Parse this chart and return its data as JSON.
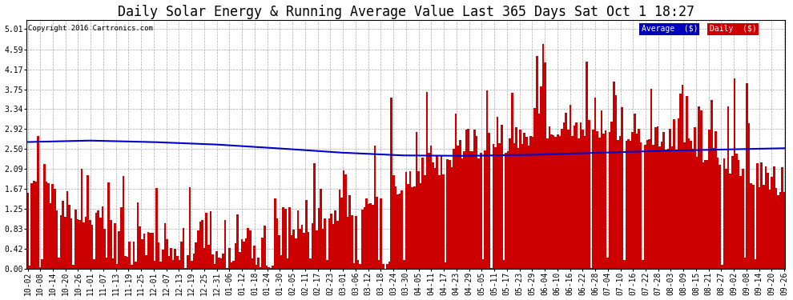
{
  "title": "Daily Solar Energy & Running Average Value Last 365 Days Sat Oct 1 18:27",
  "copyright": "Copyright 2016 Cartronics.com",
  "legend_labels": [
    "Average  ($)",
    "Daily  ($)"
  ],
  "legend_colors": [
    "#0000bb",
    "#cc0000"
  ],
  "yticks": [
    0.0,
    0.42,
    0.83,
    1.25,
    1.67,
    2.09,
    2.5,
    2.92,
    3.34,
    3.75,
    4.17,
    4.59,
    5.01
  ],
  "ymax": 5.2,
  "ymin": 0.0,
  "bar_color": "#cc0000",
  "avg_color": "#0000cc",
  "background_color": "#ffffff",
  "grid_color": "#aaaaaa",
  "title_fontsize": 12,
  "tick_fontsize": 7,
  "x_tick_labels": [
    "10-02",
    "10-08",
    "10-14",
    "10-20",
    "10-26",
    "11-01",
    "11-07",
    "11-13",
    "11-19",
    "11-25",
    "12-01",
    "12-07",
    "12-13",
    "12-19",
    "12-25",
    "12-31",
    "01-06",
    "01-12",
    "01-18",
    "01-24",
    "01-30",
    "02-05",
    "02-11",
    "02-17",
    "02-23",
    "03-01",
    "03-06",
    "03-12",
    "03-18",
    "03-24",
    "03-30",
    "04-05",
    "04-11",
    "04-17",
    "04-23",
    "04-29",
    "05-05",
    "05-11",
    "05-17",
    "05-23",
    "05-29",
    "06-04",
    "06-10",
    "06-16",
    "06-22",
    "06-28",
    "07-04",
    "07-10",
    "07-16",
    "07-22",
    "07-28",
    "08-03",
    "08-09",
    "08-15",
    "08-21",
    "08-27",
    "09-02",
    "09-08",
    "09-14",
    "09-20",
    "09-26"
  ],
  "avg_control_points": [
    [
      0,
      2.65
    ],
    [
      30,
      2.68
    ],
    [
      60,
      2.65
    ],
    [
      90,
      2.6
    ],
    [
      120,
      2.52
    ],
    [
      150,
      2.43
    ],
    [
      180,
      2.37
    ],
    [
      210,
      2.36
    ],
    [
      240,
      2.38
    ],
    [
      270,
      2.42
    ],
    [
      300,
      2.46
    ],
    [
      330,
      2.49
    ],
    [
      364,
      2.52
    ]
  ]
}
